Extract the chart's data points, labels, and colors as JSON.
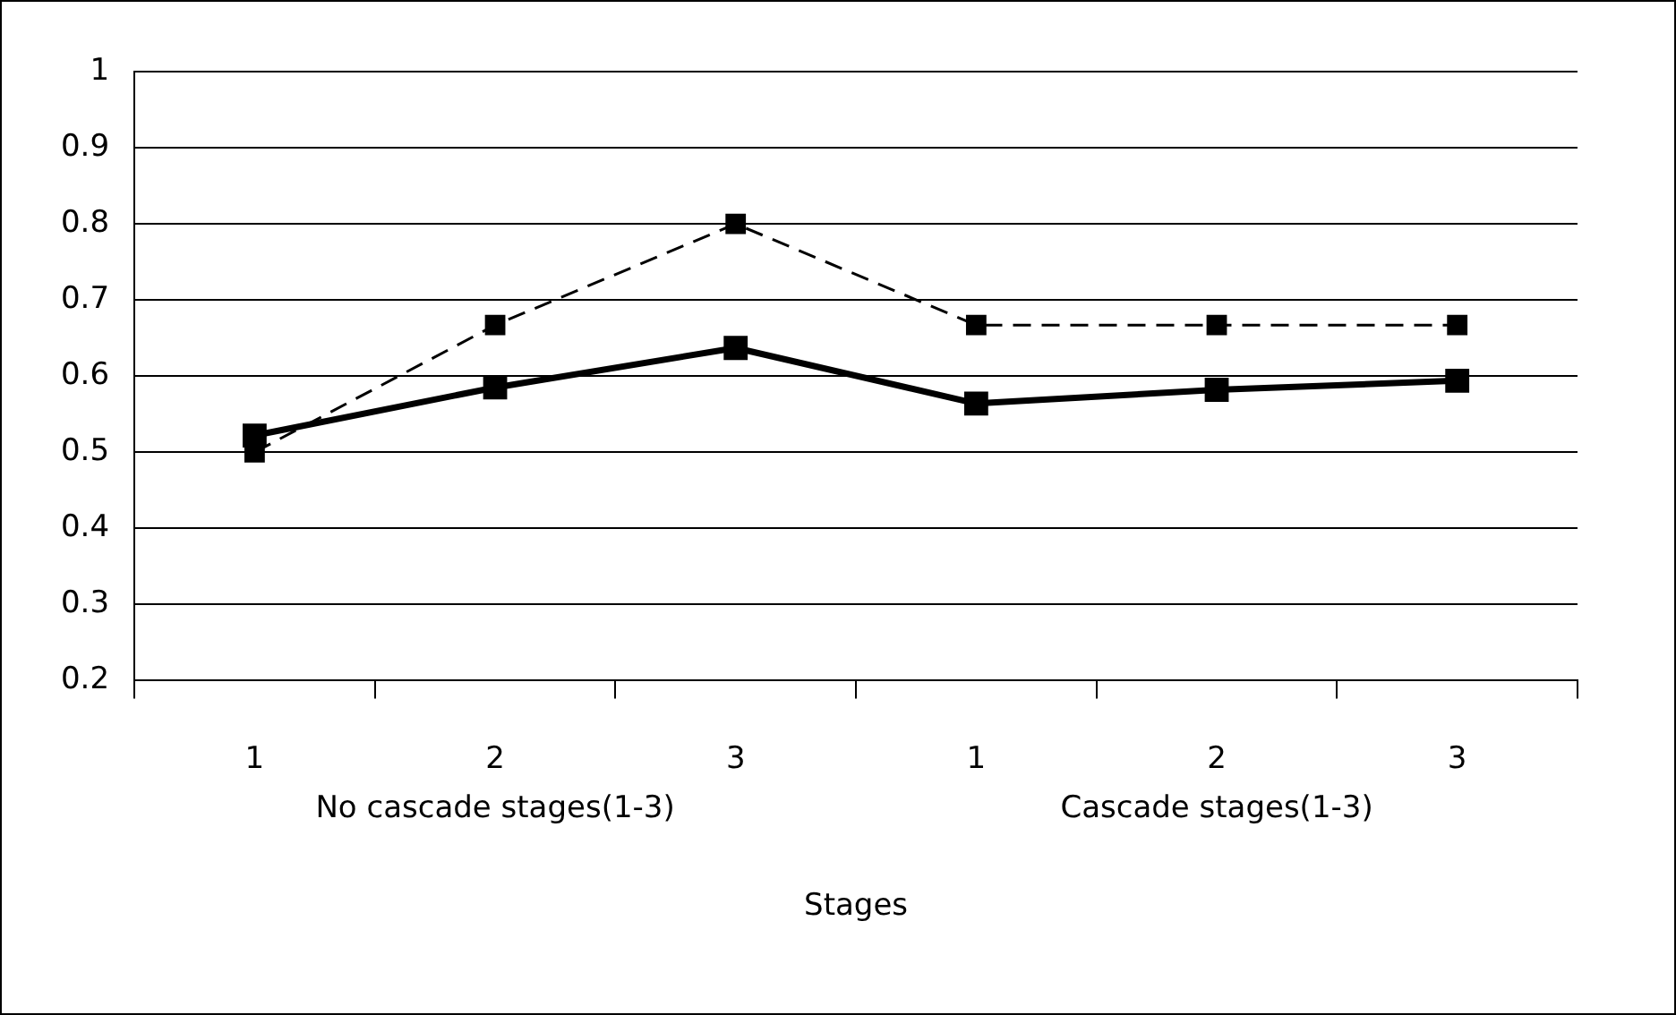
{
  "chart_data": {
    "type": "line",
    "xlabel": "Stages",
    "categories": [
      "1",
      "2",
      "3",
      "1",
      "2",
      "3"
    ],
    "series": [
      {
        "color": "#000000",
        "values": [
          0.5,
          0.667,
          0.8,
          0.667,
          0.667,
          0.667
        ],
        "line_style": "dashed"
      },
      {
        "color": "#000000",
        "values": [
          0.522,
          0.585,
          0.637,
          0.564,
          0.582,
          0.594
        ],
        "line_style": "solid"
      }
    ],
    "ylim": [
      0.2,
      1
    ],
    "yticks": [
      0.2,
      0.3,
      0.4,
      0.5,
      0.6,
      0.7,
      0.8,
      0.9,
      1
    ],
    "grid": "y",
    "legend": false,
    "marker": "square",
    "annotations": [
      "No cascade stages(1-3)",
      "Cascade stages(1-3)"
    ]
  }
}
